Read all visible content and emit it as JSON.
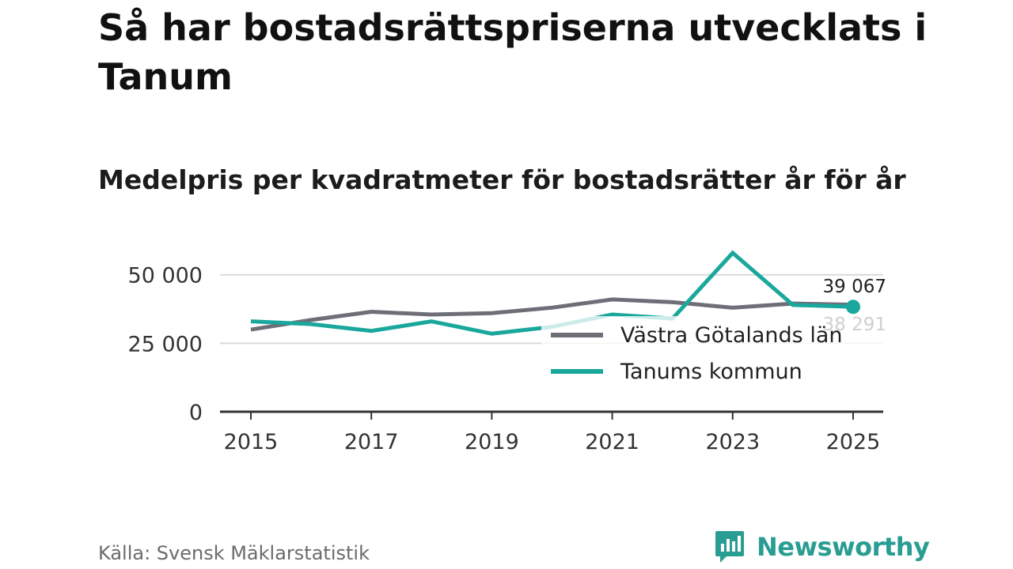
{
  "header": {
    "title": "Så har bostadsrättspriserna utvecklats i Tanum",
    "subtitle": "Medelpris per kvadratmeter för bostadsrätter år för år"
  },
  "footer": {
    "source": "Källa: Svensk Mäklarstatistik",
    "brand": "Newsworthy"
  },
  "colors": {
    "tanum": "#1aa79c",
    "vastra": "#6e6e78",
    "grid": "#d9d9d9",
    "axis": "#333333"
  },
  "chart_data": {
    "type": "line",
    "x": [
      2015,
      2016,
      2017,
      2018,
      2019,
      2020,
      2021,
      2022,
      2023,
      2024,
      2025
    ],
    "x_ticks": [
      2015,
      2017,
      2019,
      2021,
      2023,
      2025
    ],
    "x_tick_labels": [
      "2015",
      "2017",
      "2019",
      "2021",
      "2023",
      "2025"
    ],
    "y_ticks": [
      0,
      25000,
      50000
    ],
    "y_tick_labels": [
      "0",
      "25 000",
      "50 000"
    ],
    "ylim": [
      0,
      58000
    ],
    "series": [
      {
        "name": "Västra Götalands län",
        "values": [
          30000,
          33500,
          36500,
          35500,
          36000,
          38000,
          41000,
          40000,
          38000,
          39500,
          39067
        ],
        "end_label": "39 067"
      },
      {
        "name": "Tanums kommun",
        "values": [
          33000,
          32000,
          29500,
          33000,
          28500,
          31000,
          35500,
          34000,
          58000,
          39000,
          38291
        ],
        "end_label": "38 291"
      }
    ],
    "legend": [
      "Västra Götalands län",
      "Tanums kommun"
    ],
    "legend_position": "bottom-right inside"
  }
}
